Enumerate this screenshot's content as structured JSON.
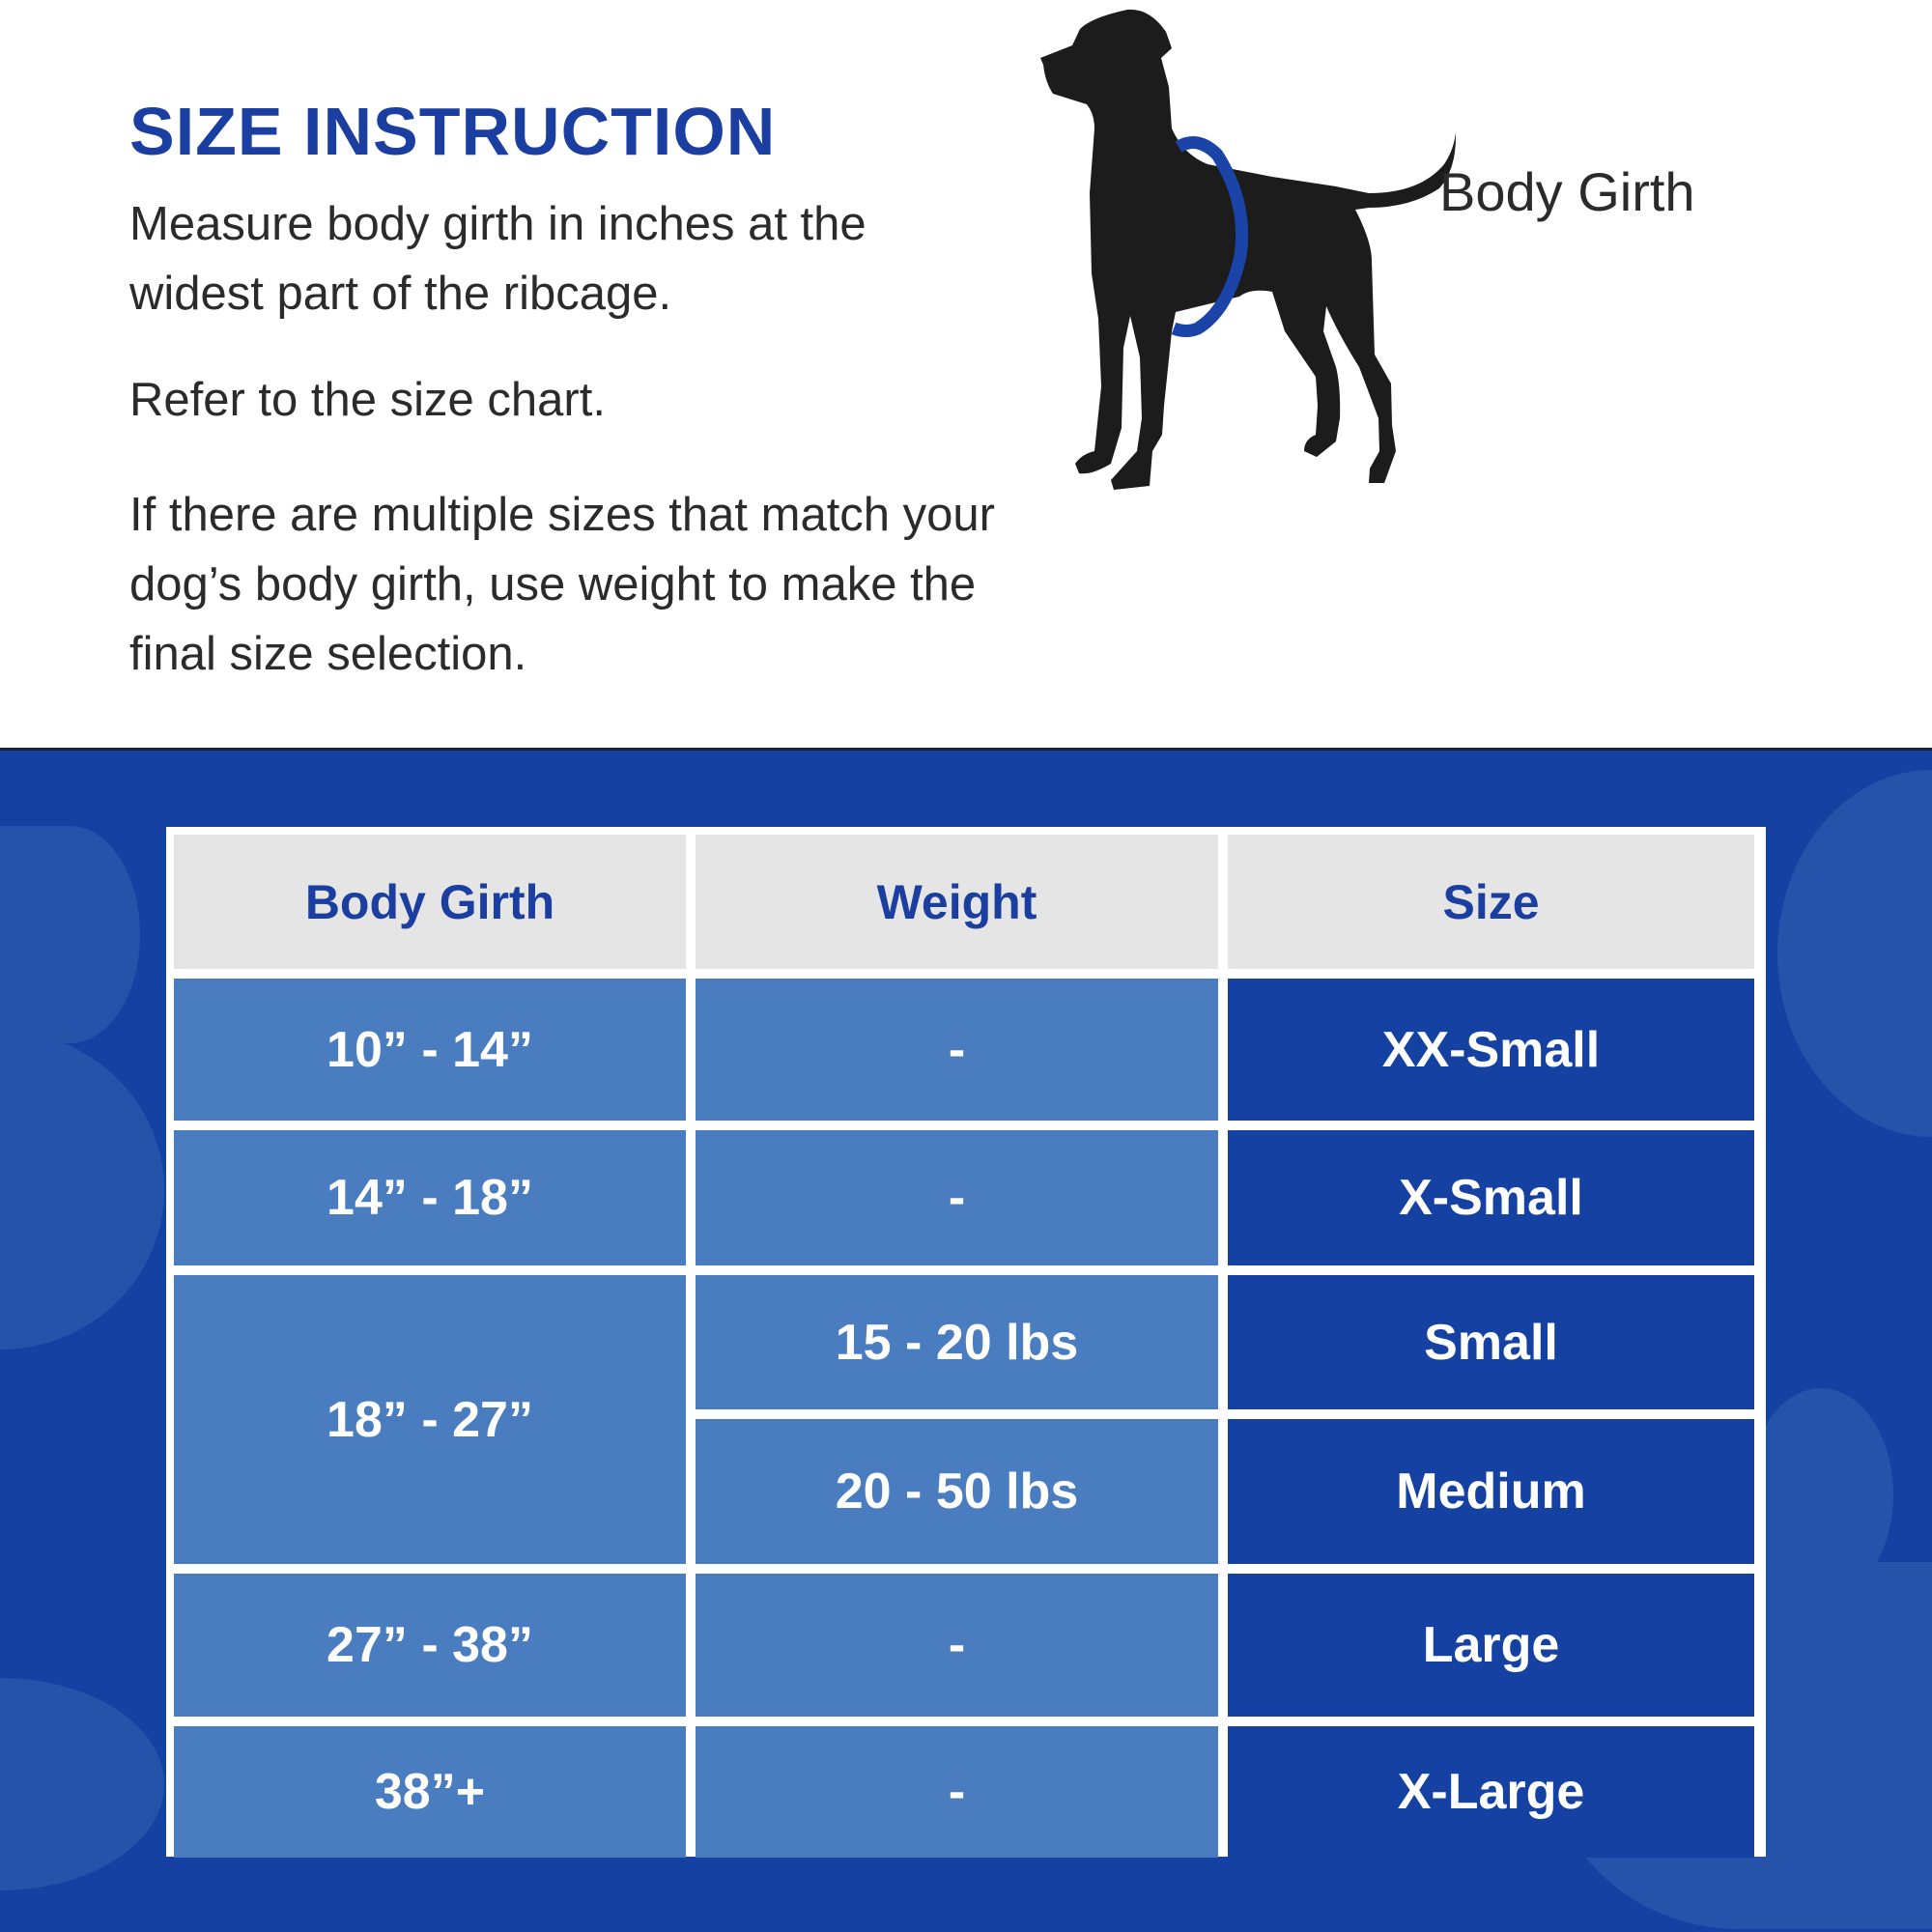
{
  "header": {
    "title": "SIZE INSTRUCTION",
    "paragraphs": [
      "Measure body girth in inches at the widest part of the ribcage.",
      "Refer to the size chart.",
      "If there are multiple sizes that match your dog’s body girth, use weight to make the final size selection."
    ]
  },
  "illustration": {
    "label": "Body Girth",
    "icon": "dog-silhouette-icon",
    "ring_color": "#1a44a8"
  },
  "colors": {
    "brand_blue": "#1541a3",
    "light_cell": "#4a7cc0",
    "header_cell": "#e6e5e5",
    "heading_text": "#1a3fa0"
  },
  "table": {
    "headers": [
      "Body Girth",
      "Weight",
      "Size"
    ],
    "rows": [
      {
        "girth": "10” - 14”",
        "weight": "-",
        "size": "XX-Small"
      },
      {
        "girth": "14” - 18”",
        "weight": "-",
        "size": "X-Small"
      },
      {
        "girth": "18” - 27”",
        "weight": "15 - 20 lbs",
        "size": "Small"
      },
      {
        "girth": "18” - 27”",
        "weight": "20 - 50 lbs",
        "size": "Medium"
      },
      {
        "girth": "27” - 38”",
        "weight": "-",
        "size": "Large"
      },
      {
        "girth": "38”+",
        "weight": "-",
        "size": "X-Large"
      }
    ]
  }
}
